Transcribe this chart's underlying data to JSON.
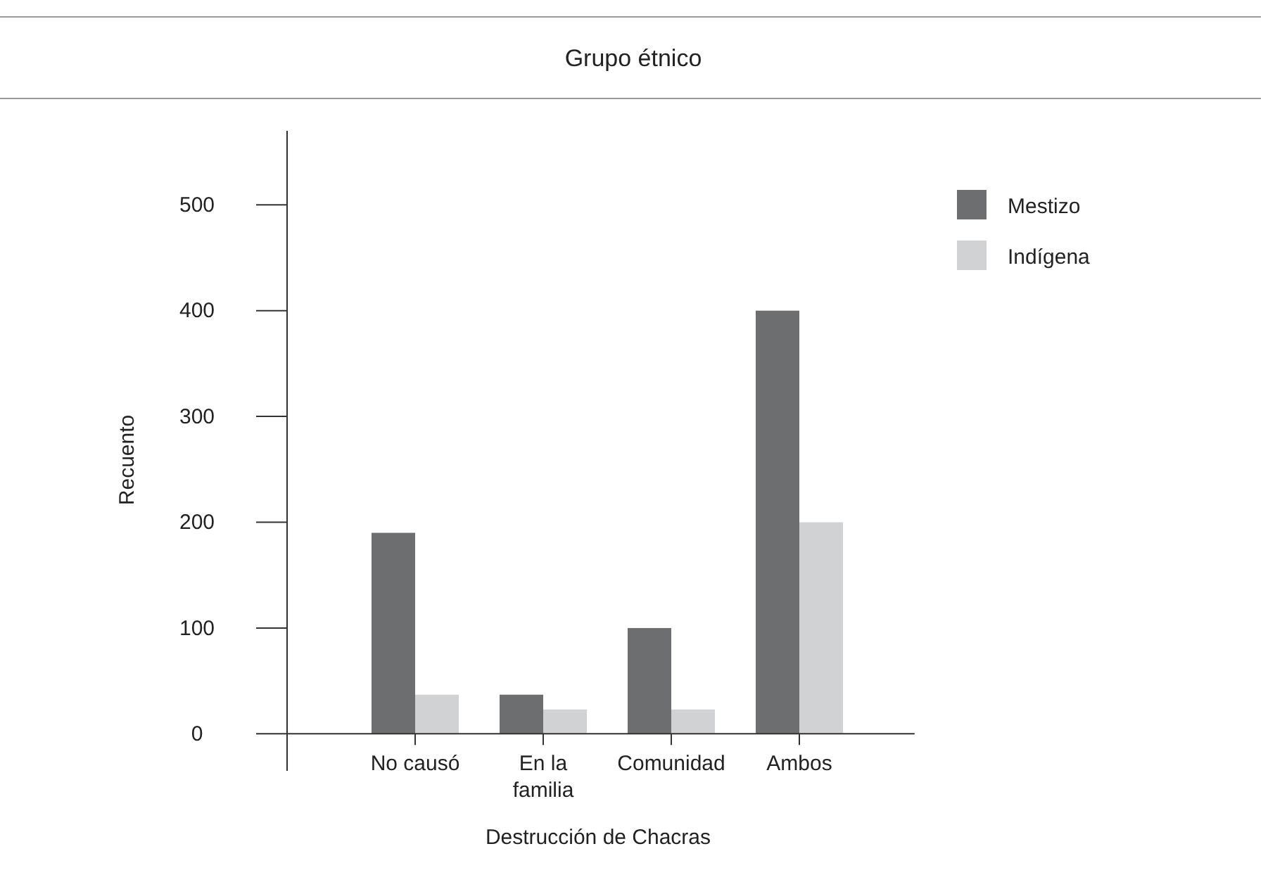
{
  "chart_data": {
    "type": "bar",
    "title": "Grupo étnico",
    "xlabel": "Destrucción de Chacras",
    "ylabel": "Recuento",
    "categories": [
      "No causó",
      "En la familia",
      "Comunidad",
      "Ambos"
    ],
    "series": [
      {
        "name": "Mestizo",
        "color": "#6d6e70",
        "values": [
          190,
          37,
          100,
          400
        ]
      },
      {
        "name": "Indígena",
        "color": "#d1d2d4",
        "values": [
          37,
          23,
          23,
          200
        ]
      }
    ],
    "ylim": [
      -35,
      570
    ],
    "yticks": [
      0,
      100,
      200,
      300,
      400,
      500
    ],
    "grid": false,
    "legend": "top right"
  }
}
